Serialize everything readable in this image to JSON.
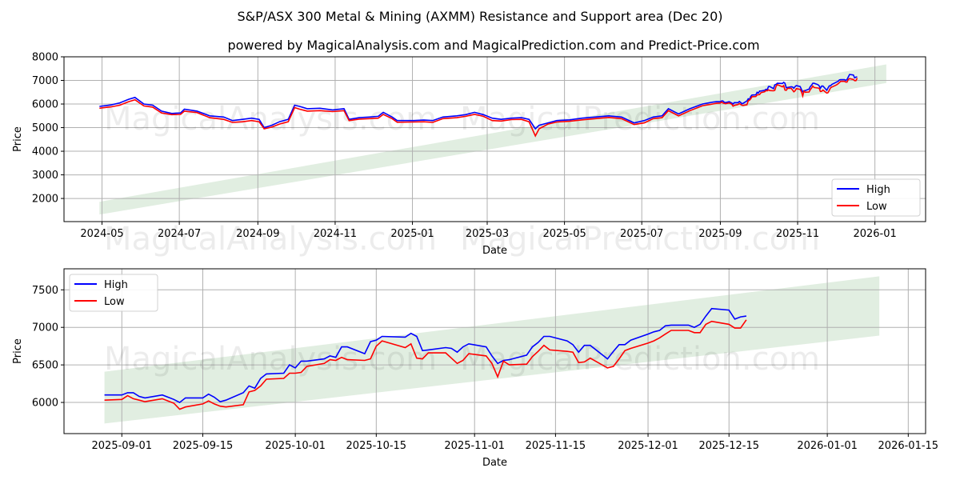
{
  "figure": {
    "title": "S&P/ASX 300 Metal & Mining (AXMM) Resistance and Support area (Dec 20)",
    "subtitle": "powered by MagicalAnalysis.com and MagicalPrediction.com and Predict-Price.com",
    "watermark_left": "MagicalAnalysis.com",
    "watermark_right": "MagicalPrediction.com"
  },
  "colors": {
    "high": "#0000ff",
    "low": "#ff0000",
    "band": "#dcebdc",
    "grid": "#b0b0b0"
  },
  "chart_data": [
    {
      "type": "line",
      "xlabel": "Date",
      "ylabel": "Price",
      "xlim": [
        "2024-04-01",
        "2026-02-10"
      ],
      "ylim": [
        1020,
        8000
      ],
      "yticks": [
        2000,
        3000,
        4000,
        5000,
        6000,
        7000,
        8000
      ],
      "xticks": [
        "2024-05",
        "2024-07",
        "2024-09",
        "2024-11",
        "2025-01",
        "2025-03",
        "2025-05",
        "2025-07",
        "2025-09",
        "2025-11",
        "2026-01"
      ],
      "grid": true,
      "legend": {
        "placement": "lower-right",
        "entries": [
          "High",
          "Low"
        ]
      },
      "band": {
        "start": [
          "2024-04-29",
          1320,
          1860
        ],
        "end": [
          "2026-01-10",
          6890,
          7680
        ]
      },
      "includes_recent_series": true,
      "points": [
        [
          "2024-04-29",
          5900,
          5820
        ],
        [
          "2024-05-08",
          5960,
          5880
        ],
        [
          "2024-05-15",
          6050,
          5950
        ],
        [
          "2024-05-22",
          6200,
          6100
        ],
        [
          "2024-05-27",
          6280,
          6180
        ],
        [
          "2024-06-03",
          6000,
          5920
        ],
        [
          "2024-06-10",
          5950,
          5870
        ],
        [
          "2024-06-17",
          5700,
          5620
        ],
        [
          "2024-06-25",
          5600,
          5550
        ],
        [
          "2024-07-02",
          5620,
          5560
        ],
        [
          "2024-07-05",
          5780,
          5700
        ],
        [
          "2024-07-15",
          5700,
          5640
        ],
        [
          "2024-07-25",
          5500,
          5420
        ],
        [
          "2024-08-05",
          5450,
          5350
        ],
        [
          "2024-08-12",
          5300,
          5220
        ],
        [
          "2024-08-20",
          5350,
          5250
        ],
        [
          "2024-08-27",
          5400,
          5300
        ],
        [
          "2024-09-02",
          5350,
          5250
        ],
        [
          "2024-09-06",
          5000,
          4950
        ],
        [
          "2024-09-12",
          5100,
          5020
        ],
        [
          "2024-09-18",
          5250,
          5150
        ],
        [
          "2024-09-25",
          5350,
          5250
        ],
        [
          "2024-09-30",
          5950,
          5850
        ],
        [
          "2024-10-04",
          5900,
          5780
        ],
        [
          "2024-10-10",
          5800,
          5700
        ],
        [
          "2024-10-20",
          5820,
          5720
        ],
        [
          "2024-10-30",
          5750,
          5680
        ],
        [
          "2024-11-08",
          5800,
          5720
        ],
        [
          "2024-11-12",
          5350,
          5300
        ],
        [
          "2024-11-20",
          5420,
          5360
        ],
        [
          "2024-11-28",
          5450,
          5380
        ],
        [
          "2024-12-05",
          5480,
          5400
        ],
        [
          "2024-12-09",
          5650,
          5560
        ],
        [
          "2024-12-16",
          5450,
          5380
        ],
        [
          "2024-12-20",
          5300,
          5230
        ],
        [
          "2025-01-02",
          5300,
          5240
        ],
        [
          "2025-01-10",
          5320,
          5250
        ],
        [
          "2025-01-17",
          5300,
          5220
        ],
        [
          "2025-01-25",
          5450,
          5380
        ],
        [
          "2025-02-05",
          5500,
          5420
        ],
        [
          "2025-02-12",
          5550,
          5480
        ],
        [
          "2025-02-19",
          5650,
          5560
        ],
        [
          "2025-02-26",
          5550,
          5480
        ],
        [
          "2025-03-05",
          5400,
          5300
        ],
        [
          "2025-03-12",
          5350,
          5280
        ],
        [
          "2025-03-20",
          5400,
          5340
        ],
        [
          "2025-03-28",
          5420,
          5350
        ],
        [
          "2025-04-03",
          5350,
          5250
        ],
        [
          "2025-04-08",
          4950,
          4650
        ],
        [
          "2025-04-11",
          5100,
          4950
        ],
        [
          "2025-04-18",
          5200,
          5150
        ],
        [
          "2025-04-25",
          5300,
          5240
        ],
        [
          "2025-05-05",
          5330,
          5270
        ],
        [
          "2025-05-15",
          5400,
          5330
        ],
        [
          "2025-05-25",
          5450,
          5380
        ],
        [
          "2025-06-05",
          5500,
          5430
        ],
        [
          "2025-06-15",
          5450,
          5380
        ],
        [
          "2025-06-25",
          5200,
          5130
        ],
        [
          "2025-07-03",
          5300,
          5200
        ],
        [
          "2025-07-10",
          5450,
          5380
        ],
        [
          "2025-07-17",
          5500,
          5420
        ],
        [
          "2025-07-22",
          5800,
          5720
        ],
        [
          "2025-07-30",
          5580,
          5500
        ],
        [
          "2025-08-08",
          5800,
          5720
        ],
        [
          "2025-08-18",
          6000,
          5930
        ],
        [
          "2025-08-26",
          6080,
          6000
        ]
      ]
    },
    {
      "type": "line",
      "xlabel": "Date",
      "ylabel": "Price",
      "xlim": [
        "2025-08-22",
        "2026-01-18"
      ],
      "ylim": [
        5585,
        7780
      ],
      "yticks": [
        6000,
        6500,
        7000,
        7500
      ],
      "xticks": [
        "2025-09-01",
        "2025-09-15",
        "2025-10-01",
        "2025-10-15",
        "2025-11-01",
        "2025-11-15",
        "2025-12-01",
        "2025-12-15",
        "2026-01-01",
        "2026-01-15"
      ],
      "grid": true,
      "legend": {
        "placement": "upper-left",
        "entries": [
          "High",
          "Low"
        ]
      },
      "band": {
        "start": [
          "2025-08-29",
          5720,
          6410
        ],
        "end": [
          "2026-01-10",
          6890,
          7680
        ]
      },
      "points": [
        [
          "2025-08-29",
          6100,
          6030
        ],
        [
          "2025-09-01",
          6100,
          6040
        ],
        [
          "2025-09-02",
          6130,
          6090
        ],
        [
          "2025-09-03",
          6130,
          6050
        ],
        [
          "2025-09-04",
          6080,
          6030
        ],
        [
          "2025-09-05",
          6060,
          6010
        ],
        [
          "2025-09-08",
          6100,
          6050
        ],
        [
          "2025-09-09",
          6070,
          6020
        ],
        [
          "2025-09-10",
          6040,
          5990
        ],
        [
          "2025-09-11",
          6000,
          5910
        ],
        [
          "2025-09-12",
          6060,
          5940
        ],
        [
          "2025-09-15",
          6060,
          5980
        ],
        [
          "2025-09-16",
          6110,
          6020
        ],
        [
          "2025-09-17",
          6070,
          5980
        ],
        [
          "2025-09-18",
          6010,
          5950
        ],
        [
          "2025-09-19",
          6030,
          5940
        ],
        [
          "2025-09-22",
          6130,
          5970
        ],
        [
          "2025-09-23",
          6220,
          6140
        ],
        [
          "2025-09-24",
          6190,
          6160
        ],
        [
          "2025-09-25",
          6320,
          6220
        ],
        [
          "2025-09-26",
          6380,
          6310
        ],
        [
          "2025-09-29",
          6390,
          6320
        ],
        [
          "2025-09-30",
          6500,
          6390
        ],
        [
          "2025-10-01",
          6460,
          6390
        ],
        [
          "2025-10-02",
          6550,
          6400
        ],
        [
          "2025-10-03",
          6550,
          6480
        ],
        [
          "2025-10-06",
          6580,
          6520
        ],
        [
          "2025-10-07",
          6620,
          6570
        ],
        [
          "2025-10-08",
          6600,
          6560
        ],
        [
          "2025-10-09",
          6740,
          6600
        ],
        [
          "2025-10-10",
          6740,
          6570
        ],
        [
          "2025-10-13",
          6650,
          6560
        ],
        [
          "2025-10-14",
          6810,
          6580
        ],
        [
          "2025-10-15",
          6830,
          6750
        ],
        [
          "2025-10-16",
          6880,
          6820
        ],
        [
          "2025-10-20",
          6870,
          6730
        ],
        [
          "2025-10-21",
          6920,
          6780
        ],
        [
          "2025-10-22",
          6880,
          6590
        ],
        [
          "2025-10-23",
          6690,
          6580
        ],
        [
          "2025-10-24",
          6700,
          6660
        ],
        [
          "2025-10-27",
          6730,
          6660
        ],
        [
          "2025-10-28",
          6720,
          6590
        ],
        [
          "2025-10-29",
          6670,
          6520
        ],
        [
          "2025-10-30",
          6740,
          6560
        ],
        [
          "2025-10-31",
          6780,
          6650
        ],
        [
          "2025-11-03",
          6740,
          6620
        ],
        [
          "2025-11-04",
          6620,
          6520
        ],
        [
          "2025-11-05",
          6520,
          6340
        ],
        [
          "2025-11-06",
          6560,
          6550
        ],
        [
          "2025-11-07",
          6570,
          6500
        ],
        [
          "2025-11-10",
          6630,
          6510
        ],
        [
          "2025-11-11",
          6740,
          6610
        ],
        [
          "2025-11-12",
          6800,
          6680
        ],
        [
          "2025-11-13",
          6880,
          6760
        ],
        [
          "2025-11-14",
          6880,
          6700
        ],
        [
          "2025-11-17",
          6820,
          6680
        ],
        [
          "2025-11-18",
          6770,
          6670
        ],
        [
          "2025-11-19",
          6670,
          6530
        ],
        [
          "2025-11-20",
          6760,
          6540
        ],
        [
          "2025-11-21",
          6760,
          6590
        ],
        [
          "2025-11-24",
          6580,
          6460
        ],
        [
          "2025-11-25",
          6680,
          6480
        ],
        [
          "2025-11-26",
          6770,
          6580
        ],
        [
          "2025-11-27",
          6770,
          6690
        ],
        [
          "2025-11-28",
          6830,
          6720
        ],
        [
          "2025-12-01",
          6910,
          6790
        ],
        [
          "2025-12-02",
          6940,
          6820
        ],
        [
          "2025-12-03",
          6960,
          6860
        ],
        [
          "2025-12-04",
          7020,
          6910
        ],
        [
          "2025-12-05",
          7030,
          6960
        ],
        [
          "2025-12-08",
          7030,
          6960
        ],
        [
          "2025-12-09",
          7000,
          6930
        ],
        [
          "2025-12-10",
          7040,
          6930
        ],
        [
          "2025-12-11",
          7150,
          7040
        ],
        [
          "2025-12-12",
          7250,
          7080
        ],
        [
          "2025-12-15",
          7230,
          7040
        ],
        [
          "2025-12-16",
          7110,
          6990
        ],
        [
          "2025-12-17",
          7140,
          6990
        ],
        [
          "2025-12-18",
          7150,
          7100
        ]
      ]
    }
  ]
}
